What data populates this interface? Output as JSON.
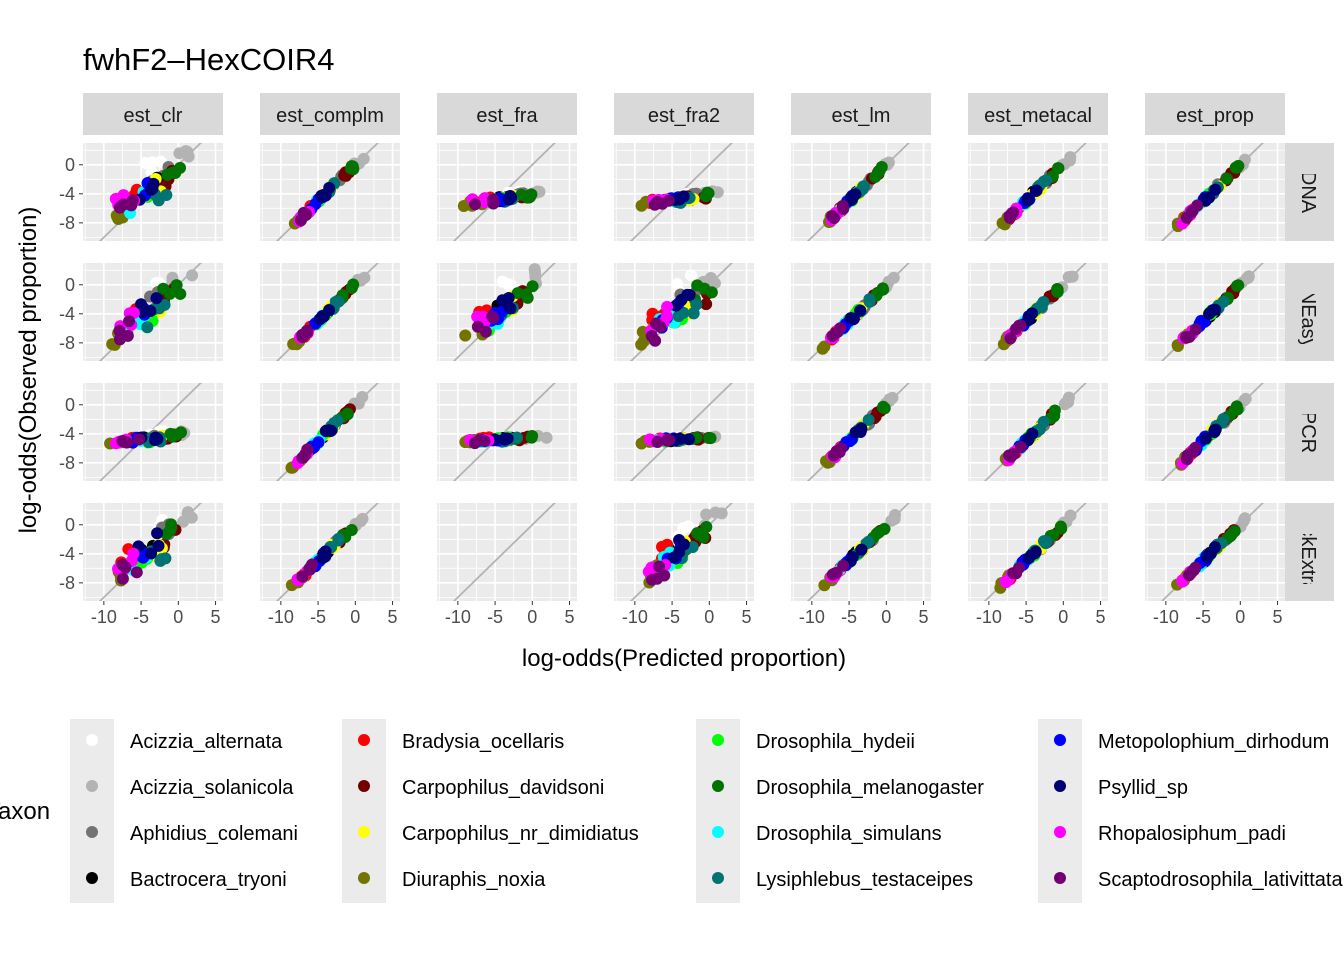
{
  "chart_data": {
    "type": "scatter",
    "title": "fwhF2–HexCOIR4",
    "xlabel": "log-odds(Predicted proportion)",
    "ylabel": "log-odds(Observed proportion)",
    "xlim": [
      -12.8,
      6.0
    ],
    "ylim": [
      -10.5,
      3.0
    ],
    "x_ticks": [
      -10,
      -5,
      0,
      5
    ],
    "x_tick_labels": [
      "-10",
      "-5",
      "0",
      "5"
    ],
    "y_ticks": [
      0,
      -4,
      -8
    ],
    "y_tick_labels": [
      "0",
      "-4",
      "-8"
    ],
    "grid": true,
    "reference_line": "y = x",
    "columns": [
      "est_clr",
      "est_complm",
      "est_fra",
      "est_fra2",
      "est_lm",
      "est_metacal",
      "est_prop"
    ],
    "rows": [
      "DNA",
      "DNEasy",
      "PCR",
      "QuickExtract"
    ],
    "legend": {
      "title": "Taxon",
      "position": "bottom",
      "entries": [
        {
          "name": "Acizzia_alternata",
          "color": "#ffffff"
        },
        {
          "name": "Acizzia_solanicola",
          "color": "#b3b3b3"
        },
        {
          "name": "Aphidius_colemani",
          "color": "#737373"
        },
        {
          "name": "Bactrocera_tryoni",
          "color": "#000000"
        },
        {
          "name": "Bradysia_ocellaris",
          "color": "#ff0000"
        },
        {
          "name": "Carpophilus_davidsoni",
          "color": "#730000"
        },
        {
          "name": "Carpophilus_nr_dimidiatus",
          "color": "#ffff00"
        },
        {
          "name": "Diuraphis_noxia",
          "color": "#737300"
        },
        {
          "name": "Drosophila_hydeii",
          "color": "#00ff00"
        },
        {
          "name": "Drosophila_melanogaster",
          "color": "#007300"
        },
        {
          "name": "Drosophila_simulans",
          "color": "#00ffff"
        },
        {
          "name": "Lysiphlebus_testaceipes",
          "color": "#007373"
        },
        {
          "name": "Metopolophium_dirhodum",
          "color": "#0000ff"
        },
        {
          "name": "Psyllid_sp",
          "color": "#000073"
        },
        {
          "name": "Rhopalosiphum_padi",
          "color": "#ff00ff"
        },
        {
          "name": "Scaptodrosophila_lativittata",
          "color": "#730073"
        }
      ]
    },
    "series_offsets": {
      "Acizzia_alternata": [
        -3.0,
        0.0
      ],
      "Acizzia_solanicola": [
        0.5,
        1.5
      ],
      "Aphidius_colemani": [
        -2.5,
        -2.0
      ],
      "Bactrocera_tryoni": [
        -4.0,
        -4.0
      ],
      "Bradysia_ocellaris": [
        -6.8,
        -5.0
      ],
      "Carpophilus_davidsoni": [
        -1.5,
        -2.5
      ],
      "Carpophilus_nr_dimidiatus": [
        -3.5,
        -3.8
      ],
      "Diuraphis_noxia": [
        -7.8,
        -8.0
      ],
      "Drosophila_hydeii": [
        -4.5,
        -5.5
      ],
      "Drosophila_melanogaster": [
        -1.0,
        -1.0
      ],
      "Drosophila_simulans": [
        -5.5,
        -6.0
      ],
      "Lysiphlebus_testaceipes": [
        -3.0,
        -5.0
      ],
      "Metopolophium_dirhodum": [
        -5.2,
        -4.8
      ],
      "Psyllid_sp": [
        -4.0,
        -3.5
      ],
      "Rhopalosiphum_padi": [
        -7.0,
        -5.8
      ],
      "Scaptodrosophila_lativittata": [
        -6.5,
        -7.2
      ]
    },
    "panel_modes": {
      "identity": {
        "slope": 1.0,
        "x_jitter": 0.8,
        "y_jitter": 0.35
      },
      "scattered": {
        "slope": 0.55,
        "x_jitter": 1.4,
        "y_jitter": 1.2
      },
      "compressed": {
        "slope": 0.15,
        "x_jitter": 1.4,
        "y_jitter": 0.35
      },
      "flat": {
        "slope": 0.05,
        "x_jitter": 1.5,
        "y_jitter": 0.25
      },
      "empty": {
        "slope": 0,
        "x_jitter": 0,
        "y_jitter": 0
      }
    },
    "panel_layout": [
      [
        "scattered",
        "identity",
        "compressed",
        "compressed",
        "identity",
        "identity",
        "identity"
      ],
      [
        "scattered",
        "identity",
        "scattered",
        "scattered",
        "identity",
        "identity",
        "identity"
      ],
      [
        "compressed",
        "identity",
        "flat",
        "flat",
        "identity",
        "identity",
        "identity"
      ],
      [
        "scattered",
        "identity",
        "empty",
        "scattered",
        "identity",
        "identity",
        "identity"
      ]
    ],
    "points_per_series": 4
  }
}
